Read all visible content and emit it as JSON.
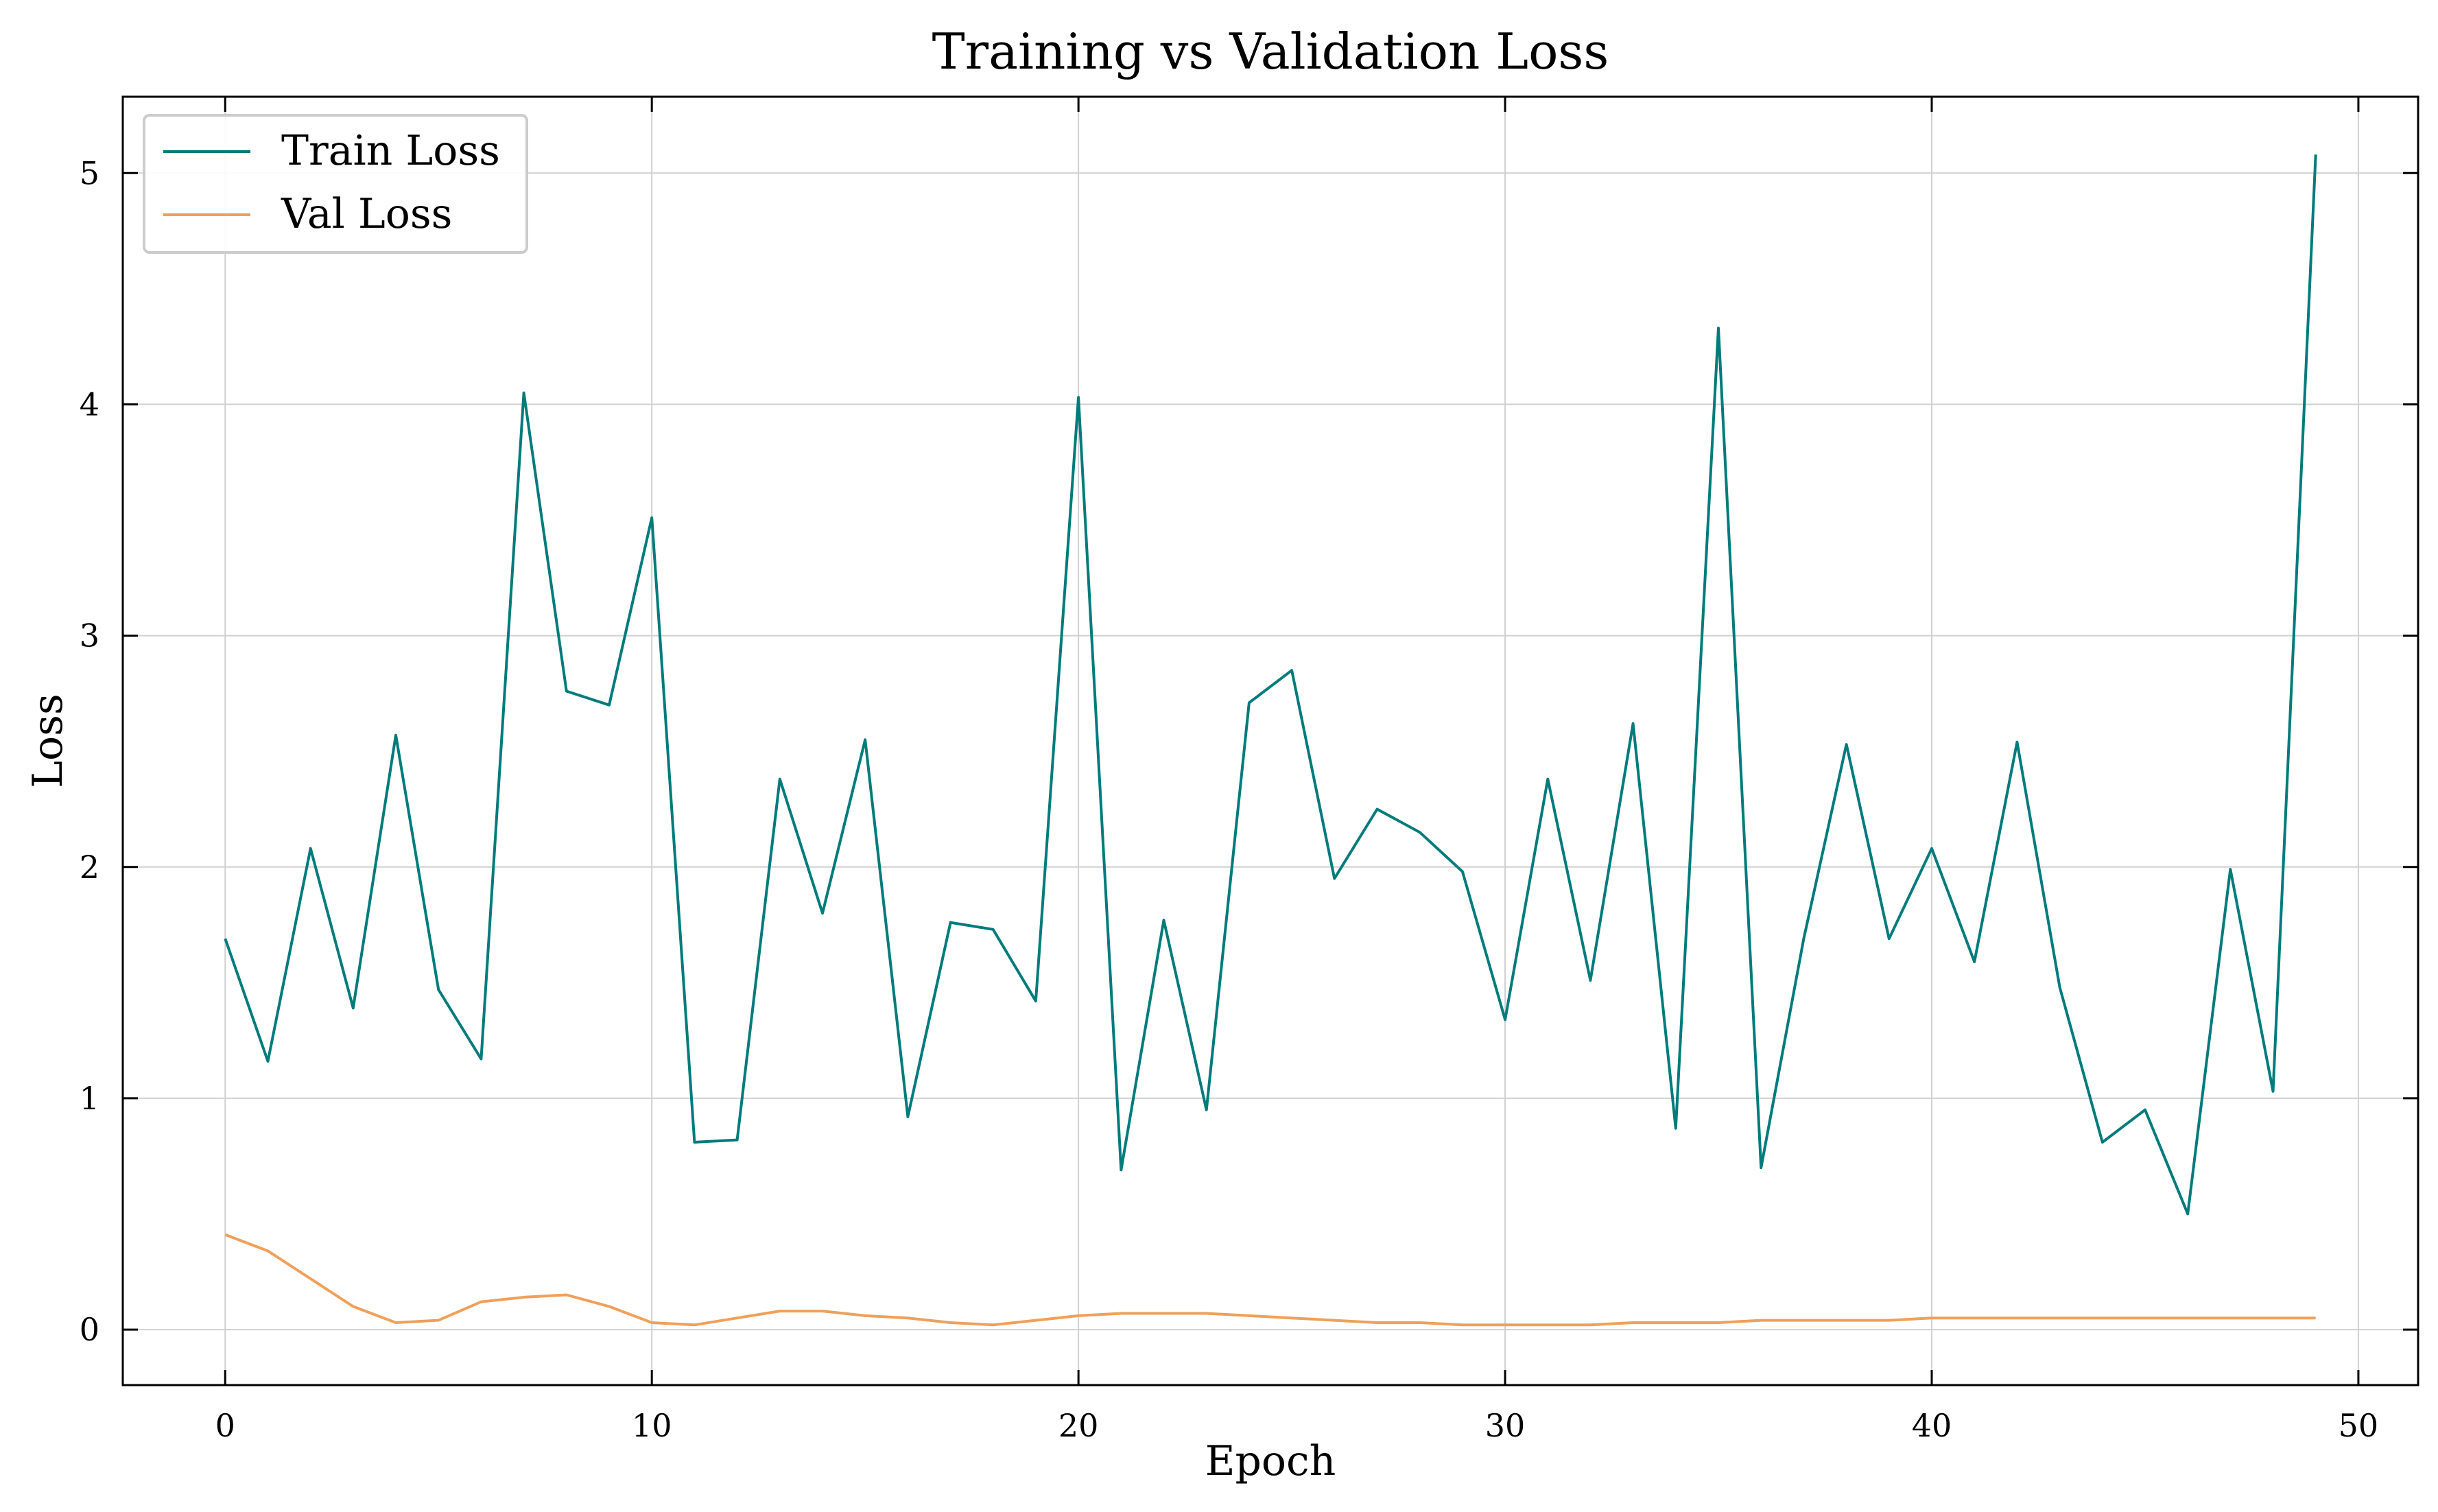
{
  "chart_data": {
    "type": "line",
    "title": "Training vs Validation Loss",
    "xlabel": "Epoch",
    "ylabel": "Loss",
    "xlim": [
      -2.4,
      51.4
    ],
    "ylim": [
      -0.24,
      5.33
    ],
    "xticks": [
      0,
      10,
      20,
      30,
      40,
      50
    ],
    "yticks": [
      0,
      1,
      2,
      3,
      4,
      5
    ],
    "grid": true,
    "legend_position": "top-left",
    "x": [
      0,
      1,
      2,
      3,
      4,
      5,
      6,
      7,
      8,
      9,
      10,
      11,
      12,
      13,
      14,
      15,
      16,
      17,
      18,
      19,
      20,
      21,
      22,
      23,
      24,
      25,
      26,
      27,
      28,
      29,
      30,
      31,
      32,
      33,
      34,
      35,
      36,
      37,
      38,
      39,
      40,
      41,
      42,
      43,
      44,
      45,
      46,
      47,
      48,
      49
    ],
    "series": [
      {
        "name": "Train Loss",
        "color": "#007b7b",
        "values": [
          1.69,
          1.16,
          2.08,
          1.39,
          2.57,
          1.47,
          1.17,
          4.05,
          2.76,
          2.7,
          3.51,
          0.81,
          0.82,
          2.38,
          1.8,
          2.55,
          0.92,
          1.76,
          1.73,
          1.42,
          4.03,
          0.69,
          1.77,
          0.95,
          2.71,
          2.85,
          1.95,
          2.25,
          2.15,
          1.98,
          1.34,
          2.38,
          1.51,
          2.62,
          0.87,
          4.33,
          0.7,
          1.69,
          2.53,
          1.69,
          2.08,
          1.59,
          2.54,
          1.48,
          0.81,
          0.95,
          0.5,
          1.99,
          1.03,
          5.08
        ]
      },
      {
        "name": "Val Loss",
        "color": "#f0a05a",
        "values": [
          0.41,
          0.34,
          0.22,
          0.1,
          0.03,
          0.04,
          0.12,
          0.14,
          0.15,
          0.1,
          0.03,
          0.02,
          0.05,
          0.08,
          0.08,
          0.06,
          0.05,
          0.03,
          0.02,
          0.04,
          0.06,
          0.07,
          0.07,
          0.07,
          0.06,
          0.05,
          0.04,
          0.03,
          0.03,
          0.02,
          0.02,
          0.02,
          0.02,
          0.03,
          0.03,
          0.03,
          0.04,
          0.04,
          0.04,
          0.04,
          0.05,
          0.05,
          0.05,
          0.05,
          0.05,
          0.05,
          0.05,
          0.05,
          0.05,
          0.05
        ]
      }
    ]
  }
}
